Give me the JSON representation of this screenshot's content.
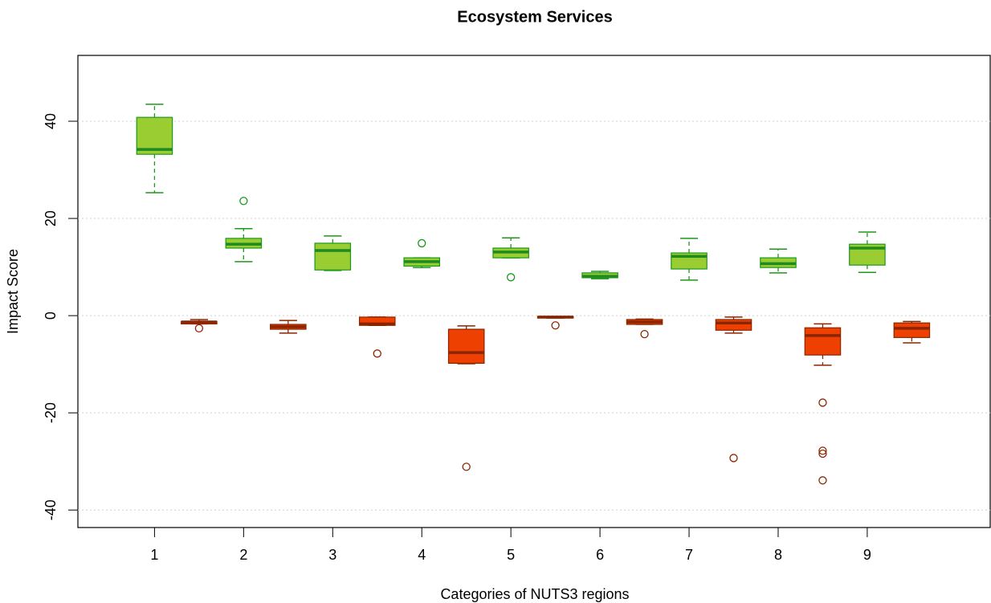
{
  "chart_data": {
    "type": "box",
    "title": "Ecosystem Services",
    "x_label": "Categories of NUTS3 regions",
    "y_label": "Impact Score",
    "xlim": [
      0.14,
      10.38
    ],
    "ylim": [
      -43.6,
      53.55
    ],
    "xticks": [
      1,
      2,
      3,
      4,
      5,
      6,
      7,
      8,
      9
    ],
    "yticks": [
      -40,
      -20,
      0,
      20,
      40
    ],
    "grid": true,
    "series": [
      {
        "color": "#9acd32",
        "line_color": "#1a9a1a",
        "median_color": "#1f8a1f",
        "x": [
          1,
          2,
          3,
          4,
          5,
          6,
          7,
          8,
          9
        ],
        "min": [
          25.3,
          11.1,
          9.3,
          9.9,
          11.9,
          7.6,
          7.3,
          8.8,
          8.9
        ],
        "q1": [
          33.2,
          13.9,
          9.4,
          10.2,
          11.9,
          7.8,
          9.6,
          9.9,
          10.4
        ],
        "median": [
          34.2,
          14.7,
          13.4,
          11.1,
          13.1,
          8.1,
          12.2,
          10.7,
          13.9
        ],
        "q3": [
          40.8,
          15.9,
          14.9,
          11.9,
          13.9,
          8.8,
          12.9,
          11.9,
          14.7
        ],
        "max": [
          43.5,
          17.9,
          16.4,
          11.9,
          16.0,
          9.1,
          15.9,
          13.7,
          17.2
        ],
        "outliers": [
          [],
          [
            23.6
          ],
          [],
          [
            14.9
          ],
          [
            7.9
          ],
          [],
          [],
          [],
          []
        ]
      },
      {
        "color": "#ee4000",
        "line_color": "#8b2500",
        "median_color": "#8b2500",
        "x": [
          1.5,
          2.5,
          3.5,
          4.5,
          5.5,
          6.5,
          7.5,
          8.5,
          9.5
        ],
        "min": [
          -1.7,
          -3.6,
          -2.0,
          -9.9,
          -0.5,
          -1.8,
          -3.6,
          -10.2,
          -5.6
        ],
        "q1": [
          -1.7,
          -2.8,
          -2.0,
          -9.8,
          -0.5,
          -1.8,
          -3.0,
          -8.1,
          -4.5
        ],
        "median": [
          -1.3,
          -2.3,
          -1.7,
          -7.6,
          -0.3,
          -1.3,
          -1.5,
          -4.1,
          -2.6
        ],
        "q3": [
          -1.2,
          -1.8,
          -0.3,
          -2.8,
          -0.2,
          -0.8,
          -0.8,
          -2.5,
          -1.5
        ],
        "max": [
          -0.8,
          -1.0,
          -0.3,
          -2.1,
          -0.2,
          -0.7,
          -0.3,
          -1.7,
          -1.2
        ],
        "outliers": [
          [
            -2.6
          ],
          [],
          [
            -7.8
          ],
          [
            -31.1
          ],
          [
            -2.0
          ],
          [
            -3.8
          ],
          [
            -29.3
          ],
          [
            -17.9,
            -27.8,
            -28.4,
            -33.9
          ],
          []
        ]
      }
    ]
  }
}
